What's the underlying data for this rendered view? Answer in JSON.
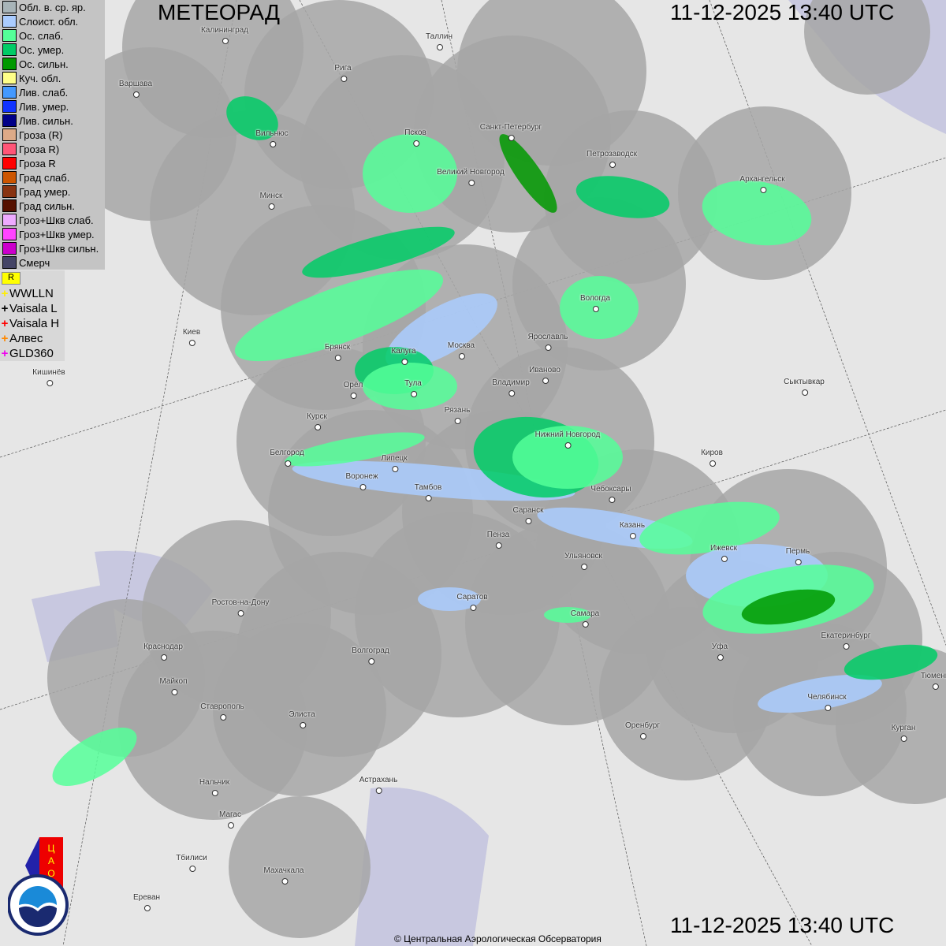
{
  "title": "МЕТЕОРАД",
  "timestamp": "11-12-2025  13:40 UTC",
  "copyright": "© Центральная Аэрологическая Обсерватория",
  "legend": [
    {
      "label": "Обл. в. ср. яр.",
      "color": "#a8b4b8"
    },
    {
      "label": "Слоист. обл.",
      "color": "#aaccff"
    },
    {
      "label": "Ос. слаб.",
      "color": "#55ff99"
    },
    {
      "label": "Ос. умер.",
      "color": "#00cc66"
    },
    {
      "label": "Ос. сильн.",
      "color": "#009900"
    },
    {
      "label": "Куч. обл.",
      "color": "#ffff88"
    },
    {
      "label": "Лив. слаб.",
      "color": "#4499ff"
    },
    {
      "label": "Лив. умер.",
      "color": "#1133ff"
    },
    {
      "label": "Лив. сильн.",
      "color": "#000088"
    },
    {
      "label": "Гроза (R)",
      "color": "#ddaa88"
    },
    {
      "label": "Гроза R)",
      "color": "#ff5577"
    },
    {
      "label": "Гроза R",
      "color": "#ff0000"
    },
    {
      "label": "Град слаб.",
      "color": "#cc5500"
    },
    {
      "label": "Град умер.",
      "color": "#883311"
    },
    {
      "label": "Град сильн.",
      "color": "#551100"
    },
    {
      "label": "Гроз+Шкв слаб.",
      "color": "#eeaaff"
    },
    {
      "label": "Гроз+Шкв умер.",
      "color": "#ff44ff"
    },
    {
      "label": "Гроз+Шкв сильн.",
      "color": "#cc00cc"
    },
    {
      "label": "Смерч",
      "color": "#444466"
    }
  ],
  "lightning_flag": "R",
  "lightning": [
    {
      "label": "WWLLN",
      "color": "#ffee00"
    },
    {
      "label": "Vaisala L",
      "color": "#000000"
    },
    {
      "label": "Vaisala H",
      "color": "#ff0000"
    },
    {
      "label": "Алвес",
      "color": "#ff8800"
    },
    {
      "label": "GLD360",
      "color": "#ee00ee"
    }
  ],
  "cities": [
    "Калининград",
    "Таллин",
    "Рига",
    "Варшава",
    "Вильнюс",
    "Псков",
    "Санкт-Петербург",
    "Великий Новгород",
    "Петрозаводск",
    "Архангельск",
    "Минск",
    "Вологда",
    "Киев",
    "Брянск",
    "Калуга",
    "Москва",
    "Ярославль",
    "Иваново",
    "Кишинёв",
    "Орёл",
    "Тула",
    "Владимир",
    "Сыктывкар",
    "Курск",
    "Рязань",
    "Нижний Новгород",
    "Белгород",
    "Липецк",
    "Киров",
    "Воронеж",
    "Тамбов",
    "Чебоксары",
    "Саранск",
    "Казань",
    "Пенза",
    "Ижевск",
    "Пермь",
    "Ульяновск",
    "Саратов",
    "Ростов-на-Дону",
    "Самара",
    "Краснодар",
    "Волгоград",
    "Уфа",
    "Екатеринбург",
    "Майкоп",
    "Тюмень",
    "Ставрополь",
    "Элиста",
    "Челябинск",
    "Оренбург",
    "Курган",
    "Нальчик",
    "Астрахань",
    "Магас",
    "Тбилиси",
    "Махачкала",
    "Ереван"
  ],
  "logos": [
    "ЦАО 1941",
    "РОСГИДРОМЕТ ROSHYDROMET"
  ]
}
